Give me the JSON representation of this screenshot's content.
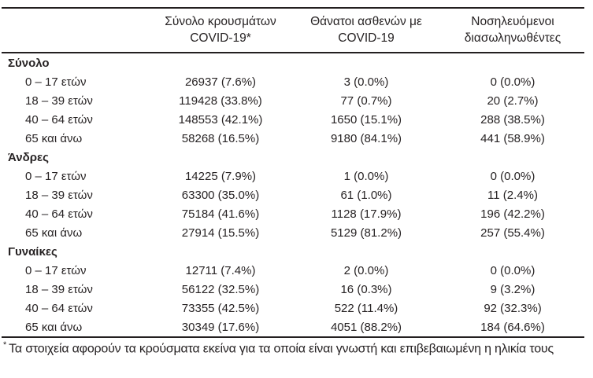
{
  "table": {
    "columns": {
      "cases": {
        "line1": "Σύνολο κρουσμάτων",
        "line2": "COVID-19*"
      },
      "deaths": {
        "line1": "Θάνατοι ασθενών με",
        "line2": "COVID-19"
      },
      "intubated": {
        "line1": "Νοσηλευόμενοι",
        "line2": "διασωληνωθέντες"
      }
    },
    "sections": [
      {
        "title": "Σύνολο",
        "rows": [
          {
            "label": "0 – 17 ετών",
            "cases": "26937 (7.6%)",
            "deaths": "3 (0.0%)",
            "intubated": "0 (0.0%)"
          },
          {
            "label": "18 – 39 ετών",
            "cases": "119428 (33.8%)",
            "deaths": "77 (0.7%)",
            "intubated": "20 (2.7%)"
          },
          {
            "label": "40 – 64 ετών",
            "cases": "148553 (42.1%)",
            "deaths": "1650 (15.1%)",
            "intubated": "288 (38.5%)"
          },
          {
            "label": "65 και άνω",
            "cases": "58268 (16.5%)",
            "deaths": "9180 (84.1%)",
            "intubated": "441 (58.9%)"
          }
        ]
      },
      {
        "title": "Άνδρες",
        "rows": [
          {
            "label": "0 – 17 ετών",
            "cases": "14225 (7.9%)",
            "deaths": "1 (0.0%)",
            "intubated": "0 (0.0%)"
          },
          {
            "label": "18 – 39 ετών",
            "cases": "63300 (35.0%)",
            "deaths": "61 (1.0%)",
            "intubated": "11 (2.4%)"
          },
          {
            "label": "40 – 64 ετών",
            "cases": "75184 (41.6%)",
            "deaths": "1128 (17.9%)",
            "intubated": "196 (42.2%)"
          },
          {
            "label": "65 και άνω",
            "cases": "27914 (15.5%)",
            "deaths": "5129 (81.2%)",
            "intubated": "257 (55.4%)"
          }
        ]
      },
      {
        "title": "Γυναίκες",
        "rows": [
          {
            "label": "0 – 17 ετών",
            "cases": "12711 (7.4%)",
            "deaths": "2 (0.0%)",
            "intubated": "0 (0.0%)"
          },
          {
            "label": "18 – 39 ετών",
            "cases": "56122 (32.5%)",
            "deaths": "16 (0.3%)",
            "intubated": "9 (3.2%)"
          },
          {
            "label": "40 – 64 ετών",
            "cases": "73355 (42.5%)",
            "deaths": "522 (11.4%)",
            "intubated": "92 (32.3%)"
          },
          {
            "label": "65 και άνω",
            "cases": "30349 (17.6%)",
            "deaths": "4051 (88.2%)",
            "intubated": "184 (64.6%)"
          }
        ]
      }
    ],
    "footnote": {
      "marker": "*",
      "text": "Τα στοιχεία αφορούν τα κρούσματα εκείνα για τα οποία είναι γνωστή και επιβεβαιωμένη η ηλικία τους"
    }
  }
}
